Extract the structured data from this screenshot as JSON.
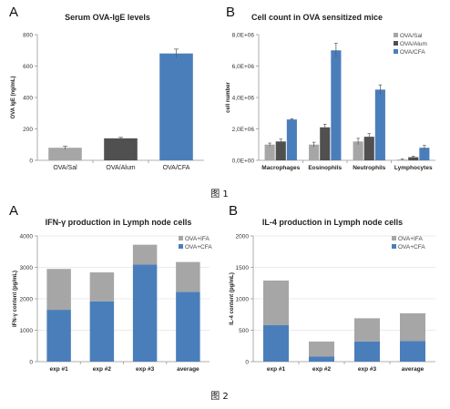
{
  "figures": [
    {
      "label": "图 1"
    },
    {
      "label": "图 2"
    }
  ],
  "colors": {
    "sal": "#a6a6a6",
    "alum": "#505050",
    "cfa": "#4a7ebb",
    "ifa": "#a6a6a6"
  },
  "chart_data": [
    {
      "panel": "A",
      "type": "bar",
      "title": "Serum OVA-IgE levels",
      "xlabel": "",
      "ylabel": "OVA IgE (ng/mL)",
      "categories": [
        "OVA/Sal",
        "OVA/Alum",
        "OVA/CFA"
      ],
      "values": [
        80,
        140,
        680
      ],
      "errors": [
        10,
        6,
        28
      ],
      "bar_colors": [
        "#a6a6a6",
        "#505050",
        "#4a7ebb"
      ],
      "ylim": [
        0,
        800
      ],
      "yticks": [
        "0",
        "200",
        "400",
        "600",
        "800"
      ],
      "grid": false
    },
    {
      "panel": "B",
      "type": "bar",
      "title": "Cell count in OVA sensitized mice",
      "xlabel": "",
      "ylabel": "cell number",
      "categories": [
        "Macrophages",
        "Eosinophils",
        "Neutrophils",
        "Lymphocytes"
      ],
      "series": [
        {
          "name": "OVA/Sal",
          "color": "#a6a6a6",
          "values": [
            1000000,
            1000000,
            1200000,
            50000
          ],
          "errors": [
            100000,
            150000,
            200000,
            30000
          ]
        },
        {
          "name": "OVA/Alum",
          "color": "#505050",
          "values": [
            1200000,
            2100000,
            1500000,
            200000
          ],
          "errors": [
            150000,
            200000,
            200000,
            60000
          ]
        },
        {
          "name": "OVA/CFA",
          "color": "#4a7ebb",
          "values": [
            2600000,
            7000000,
            4500000,
            800000
          ],
          "errors": [
            50000,
            450000,
            300000,
            150000
          ]
        }
      ],
      "ylim": [
        0,
        8000000
      ],
      "yticks": [
        "0,0E+00",
        "2,0E+06",
        "4,0E+06",
        "6,0E+06",
        "8,0E+06"
      ],
      "legend": "top-right",
      "grid": false
    },
    {
      "panel": "A",
      "type": "bar",
      "stacked": true,
      "title": "IFN-γ production in Lymph node cells",
      "xlabel": "",
      "ylabel": "IFN-γ content (pg/mL)",
      "categories": [
        "exp #1",
        "exp #2",
        "exp #3",
        "average"
      ],
      "series": [
        {
          "name": "OVA+CFA",
          "color": "#4a7ebb",
          "values": [
            1650,
            1920,
            3090,
            2220
          ]
        },
        {
          "name": "OVA+IFA",
          "color": "#a6a6a6",
          "values": [
            1300,
            920,
            630,
            950
          ]
        }
      ],
      "ylim": [
        0,
        4000
      ],
      "yticks": [
        "0",
        "1000",
        "2000",
        "3000",
        "4000"
      ],
      "legend": "top-right",
      "grid": true
    },
    {
      "panel": "B",
      "type": "bar",
      "stacked": true,
      "title": "IL-4 production in Lymph node cells",
      "xlabel": "",
      "ylabel": "IL-4 content (pg/mL)",
      "categories": [
        "exp #1",
        "exp #2",
        "exp #3",
        "average"
      ],
      "series": [
        {
          "name": "OVA+CFA",
          "color": "#4a7ebb",
          "values": [
            580,
            80,
            320,
            330
          ]
        },
        {
          "name": "OVA+IFA",
          "color": "#a6a6a6",
          "values": [
            710,
            240,
            370,
            440
          ]
        }
      ],
      "ylim": [
        0,
        2000
      ],
      "yticks": [
        "0",
        "500",
        "1000",
        "1500",
        "2000"
      ],
      "legend": "top-right",
      "grid": true
    }
  ]
}
